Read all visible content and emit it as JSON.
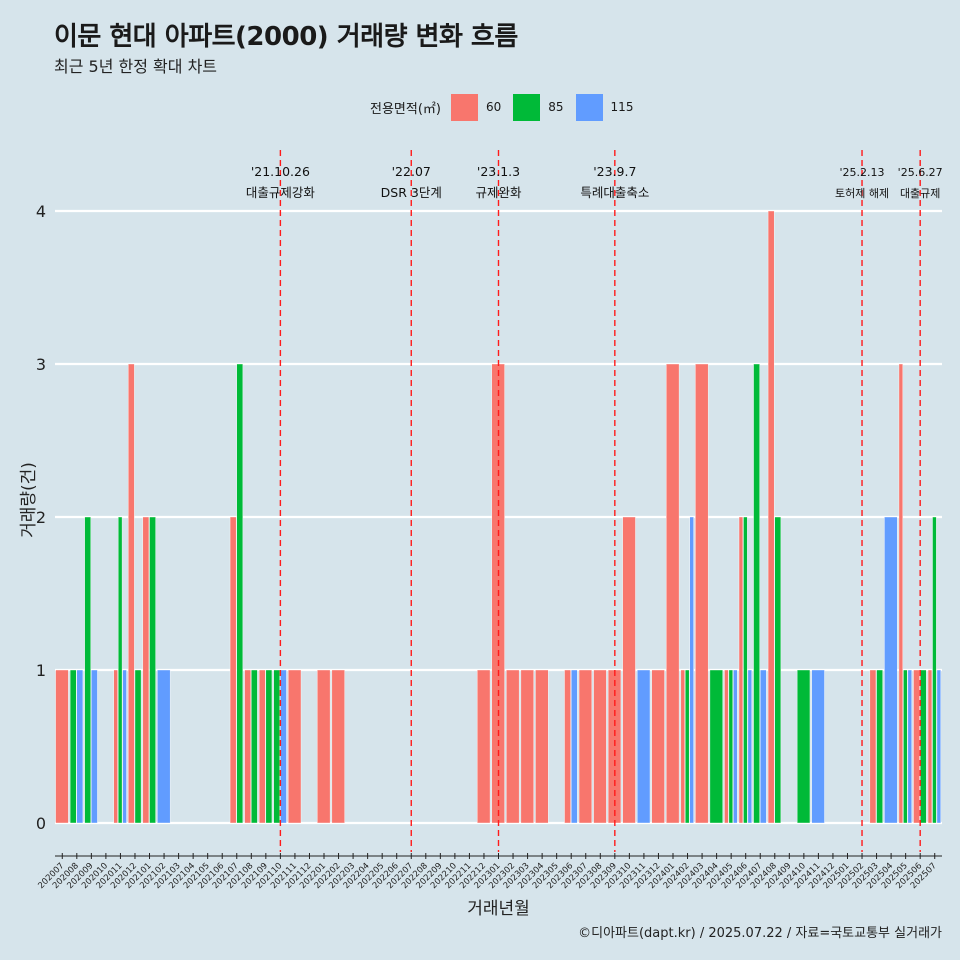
{
  "title": "이문 현대 아파트(2000) 거래량 변화 흐름",
  "subtitle": "최근 5년 한정 확대 차트",
  "caption": "©디아파트(dapt.kr) / 2025.07.22 / 자료=국토교통부 실거래가",
  "legend": {
    "title": "전용면적(㎡)",
    "items": [
      {
        "label": "60",
        "color": "#f8766d"
      },
      {
        "label": "85",
        "color": "#00ba38"
      },
      {
        "label": "115",
        "color": "#619cff"
      }
    ]
  },
  "chart_data": {
    "type": "bar",
    "xlabel": "거래년월",
    "ylabel": "거래량(건)",
    "ylim": [
      0,
      4
    ],
    "yticks": [
      0,
      1,
      2,
      3,
      4
    ],
    "grid": true,
    "legend_position": "top",
    "categories": [
      "202007",
      "202008",
      "202009",
      "202010",
      "202011",
      "202012",
      "202101",
      "202102",
      "202103",
      "202104",
      "202105",
      "202106",
      "202107",
      "202108",
      "202109",
      "202110",
      "202111",
      "202112",
      "202201",
      "202202",
      "202203",
      "202204",
      "202205",
      "202206",
      "202207",
      "202208",
      "202209",
      "202210",
      "202211",
      "202212",
      "202301",
      "202302",
      "202303",
      "202304",
      "202305",
      "202306",
      "202307",
      "202308",
      "202309",
      "202310",
      "202311",
      "202312",
      "202401",
      "202402",
      "202403",
      "202404",
      "202405",
      "202406",
      "202407",
      "202408",
      "202409",
      "202410",
      "202411",
      "202412",
      "202501",
      "202502",
      "202503",
      "202504",
      "202505",
      "202506",
      "202507"
    ],
    "series": [
      {
        "name": "60",
        "color": "#f8766d",
        "values": [
          1,
          0,
          0,
          0,
          1,
          3,
          2,
          0,
          0,
          0,
          0,
          0,
          2,
          1,
          1,
          0,
          1,
          0,
          1,
          1,
          0,
          0,
          0,
          0,
          0,
          0,
          0,
          0,
          0,
          1,
          3,
          1,
          1,
          1,
          0,
          1,
          1,
          1,
          1,
          2,
          0,
          1,
          3,
          1,
          3,
          0,
          1,
          2,
          0,
          4,
          0,
          0,
          0,
          0,
          0,
          0,
          1,
          0,
          3,
          1,
          1
        ]
      },
      {
        "name": "85",
        "color": "#00ba38",
        "values": [
          0,
          1,
          2,
          0,
          2,
          1,
          2,
          0,
          0,
          0,
          0,
          0,
          3,
          1,
          1,
          1,
          0,
          0,
          0,
          0,
          0,
          0,
          0,
          0,
          0,
          0,
          0,
          0,
          0,
          0,
          0,
          0,
          0,
          0,
          0,
          0,
          0,
          0,
          0,
          0,
          0,
          0,
          0,
          1,
          0,
          1,
          1,
          2,
          3,
          2,
          0,
          1,
          0,
          0,
          0,
          0,
          1,
          0,
          1,
          1,
          2
        ]
      },
      {
        "name": "115",
        "color": "#619cff",
        "values": [
          0,
          1,
          1,
          0,
          1,
          0,
          0,
          1,
          0,
          0,
          0,
          0,
          0,
          0,
          0,
          1,
          0,
          0,
          0,
          0,
          0,
          0,
          0,
          0,
          0,
          0,
          0,
          0,
          0,
          0,
          0,
          0,
          0,
          0,
          0,
          1,
          0,
          0,
          0,
          0,
          1,
          0,
          0,
          2,
          0,
          0,
          1,
          1,
          1,
          0,
          0,
          0,
          1,
          0,
          0,
          0,
          0,
          2,
          1,
          0,
          1
        ]
      }
    ],
    "annotations": [
      {
        "at": "202110",
        "date": "'21.10.26",
        "label": "대출규제강화"
      },
      {
        "at": "202207",
        "date": "'22.07",
        "label": "DSR 3단계"
      },
      {
        "at": "202301",
        "date": "'23.1.3",
        "label": "규제완화"
      },
      {
        "at": "202309",
        "date": "'23.9.7",
        "label": "특례대출축소"
      },
      {
        "at": "202502",
        "date": "'25.2.13",
        "label": "토허제 해제"
      },
      {
        "at": "202506",
        "date": "'25.6.27",
        "label": "대출규제"
      }
    ]
  }
}
